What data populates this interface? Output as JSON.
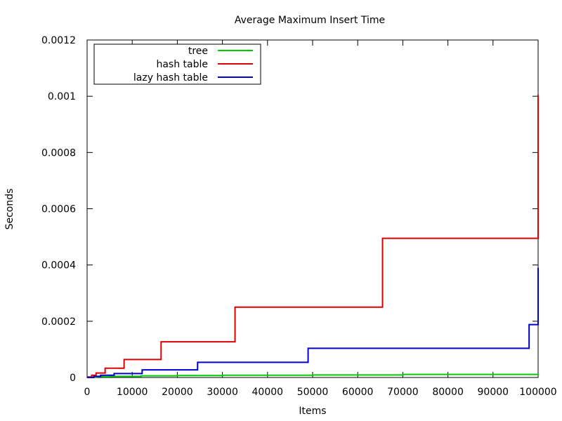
{
  "chart_data": {
    "type": "line",
    "title": "Average Maximum Insert Time",
    "xlabel": "Items",
    "ylabel": "Seconds",
    "xlim": [
      0,
      100000
    ],
    "ylim": [
      0,
      0.0012
    ],
    "x_ticks": [
      "0",
      "10000",
      "20000",
      "30000",
      "40000",
      "50000",
      "60000",
      "70000",
      "80000",
      "90000",
      "100000"
    ],
    "y_ticks": [
      "0",
      "0.0002",
      "0.0004",
      "0.0006",
      "0.0008",
      "0.001",
      "0.0012"
    ],
    "grid": false,
    "legend_position": "top-left",
    "step": true,
    "series": [
      {
        "name": "tree",
        "color": "#00cc00",
        "points": [
          [
            0,
            2e-06
          ],
          [
            2000,
            3e-06
          ],
          [
            5000,
            4e-06
          ],
          [
            12000,
            6e-06
          ],
          [
            20000,
            7e-06
          ],
          [
            30000,
            8e-06
          ],
          [
            50000,
            9e-06
          ],
          [
            70000,
            1.1e-05
          ],
          [
            100000,
            1.2e-05
          ]
        ]
      },
      {
        "name": "hash table",
        "color": "#dd0000",
        "points": [
          [
            0,
            2e-06
          ],
          [
            1000,
            8e-06
          ],
          [
            2000,
            1.6e-05
          ],
          [
            4000,
            3.3e-05
          ],
          [
            8200,
            6.4e-05
          ],
          [
            16400,
            0.000127
          ],
          [
            32800,
            0.00025
          ],
          [
            65500,
            0.000495
          ],
          [
            100000,
            0.001005
          ]
        ]
      },
      {
        "name": "lazy hash table",
        "color": "#0000cc",
        "points": [
          [
            0,
            0.0
          ],
          [
            1500,
            4e-06
          ],
          [
            3000,
            8e-06
          ],
          [
            6000,
            1.4e-05
          ],
          [
            12200,
            2.7e-05
          ],
          [
            24500,
            5.4e-05
          ],
          [
            49000,
            0.000104
          ],
          [
            98000,
            0.000188
          ],
          [
            100000,
            0.00039
          ]
        ]
      }
    ]
  }
}
